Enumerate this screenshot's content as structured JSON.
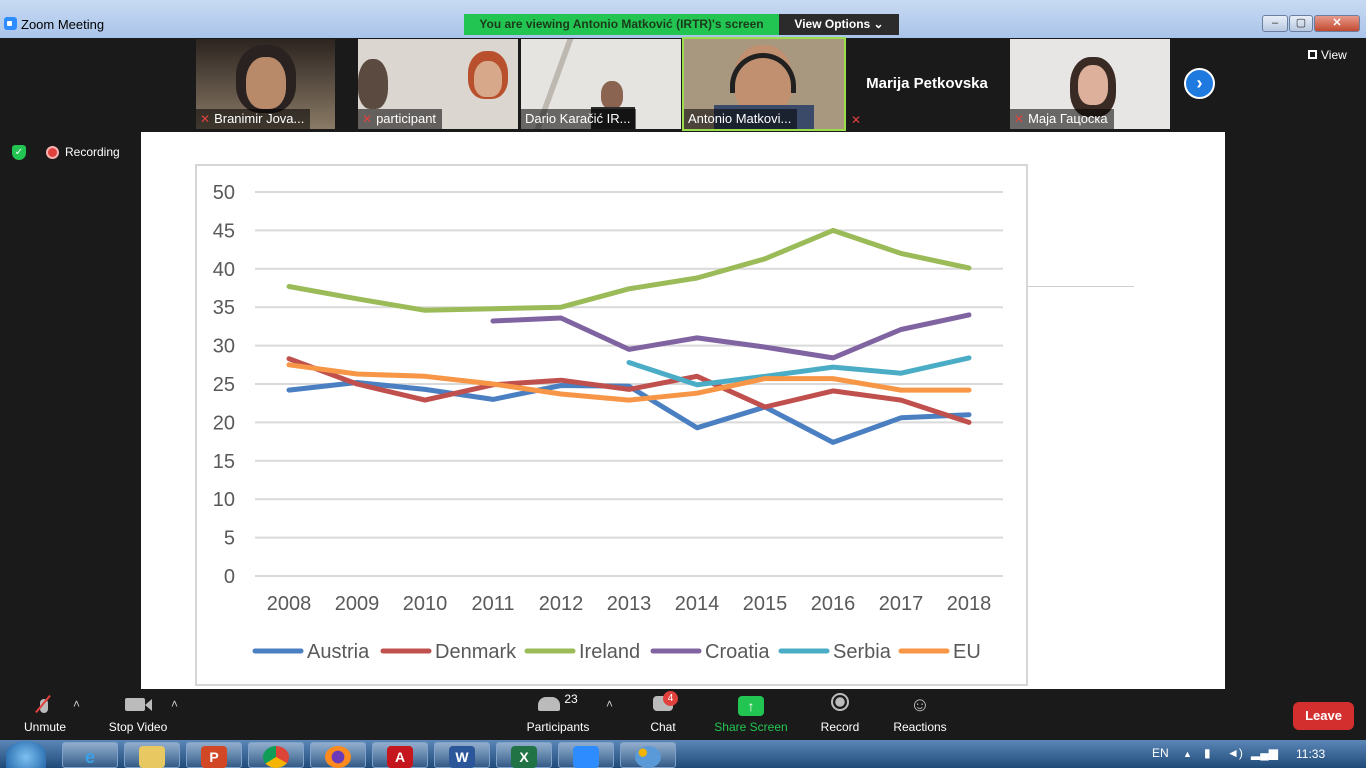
{
  "window": {
    "title": "Zoom Meeting",
    "viewing_banner": "You are viewing Antonio Matković (IRTR)'s screen",
    "view_options": "View Options ⌄",
    "controls": [
      "–",
      "▢",
      "✕"
    ]
  },
  "gallery": {
    "participants": [
      {
        "name": "Branimir Jova..."
      },
      {
        "name": "participant"
      },
      {
        "name": "Dario Karačić IR..."
      },
      {
        "name": "Antonio Matkovi..."
      }
    ],
    "name_only": "Marija Petkovska",
    "last_participant": "Maja Гацоска",
    "next_icon": "chevron-right-icon",
    "next_glyph": "›",
    "view_label": "View"
  },
  "status": {
    "recording_label": "Recording",
    "shield_glyph": "✓"
  },
  "chart_data": {
    "type": "line",
    "x": [
      2008,
      2009,
      2010,
      2011,
      2012,
      2013,
      2014,
      2015,
      2016,
      2017,
      2018
    ],
    "ylim": [
      0,
      50
    ],
    "yticks": [
      0,
      5,
      10,
      15,
      20,
      25,
      30,
      35,
      40,
      45,
      50
    ],
    "grid": true,
    "legend_position": "bottom",
    "series": [
      {
        "name": "Austria",
        "color": "#4a7fc1",
        "values": [
          24.2,
          25.2,
          24.3,
          23.0,
          24.8,
          24.7,
          19.3,
          22.0,
          17.4,
          20.6,
          21.0
        ]
      },
      {
        "name": "Denmark",
        "color": "#c0504d",
        "values": [
          28.3,
          25.0,
          22.9,
          24.9,
          25.5,
          24.3,
          26.0,
          22.0,
          24.1,
          22.9,
          20.0
        ]
      },
      {
        "name": "Ireland",
        "color": "#9bbb59",
        "values": [
          37.7,
          36.1,
          34.6,
          34.8,
          35.0,
          37.4,
          38.8,
          41.3,
          45.0,
          42.0,
          40.1
        ]
      },
      {
        "name": "Croatia",
        "color": "#8064a2",
        "values": [
          null,
          null,
          null,
          33.2,
          33.6,
          29.5,
          31.0,
          29.8,
          28.4,
          32.1,
          34.0
        ]
      },
      {
        "name": "Serbia",
        "color": "#4bacc6",
        "values": [
          null,
          null,
          null,
          null,
          null,
          27.8,
          24.9,
          26.0,
          27.2,
          26.4,
          28.4
        ]
      },
      {
        "name": "EU",
        "color": "#f79646",
        "values": [
          27.5,
          26.3,
          26.0,
          25.0,
          23.7,
          22.9,
          23.8,
          25.7,
          25.7,
          24.2,
          24.2
        ]
      }
    ]
  },
  "toolbar": {
    "unmute": "Unmute",
    "stop_video": "Stop Video",
    "participants_label": "Participants",
    "participants_count": "23",
    "chat_label": "Chat",
    "chat_badge": "4",
    "share_label": "Share Screen",
    "record_label": "Record",
    "reactions_label": "Reactions",
    "leave_label": "Leave",
    "caret": "˄"
  },
  "taskbar": {
    "apps": [
      "ie",
      "explorer",
      "powerpoint",
      "chrome",
      "firefox",
      "acrobat",
      "word",
      "excel",
      "zoom",
      "paint"
    ],
    "language": "EN",
    "time": "11:33"
  }
}
